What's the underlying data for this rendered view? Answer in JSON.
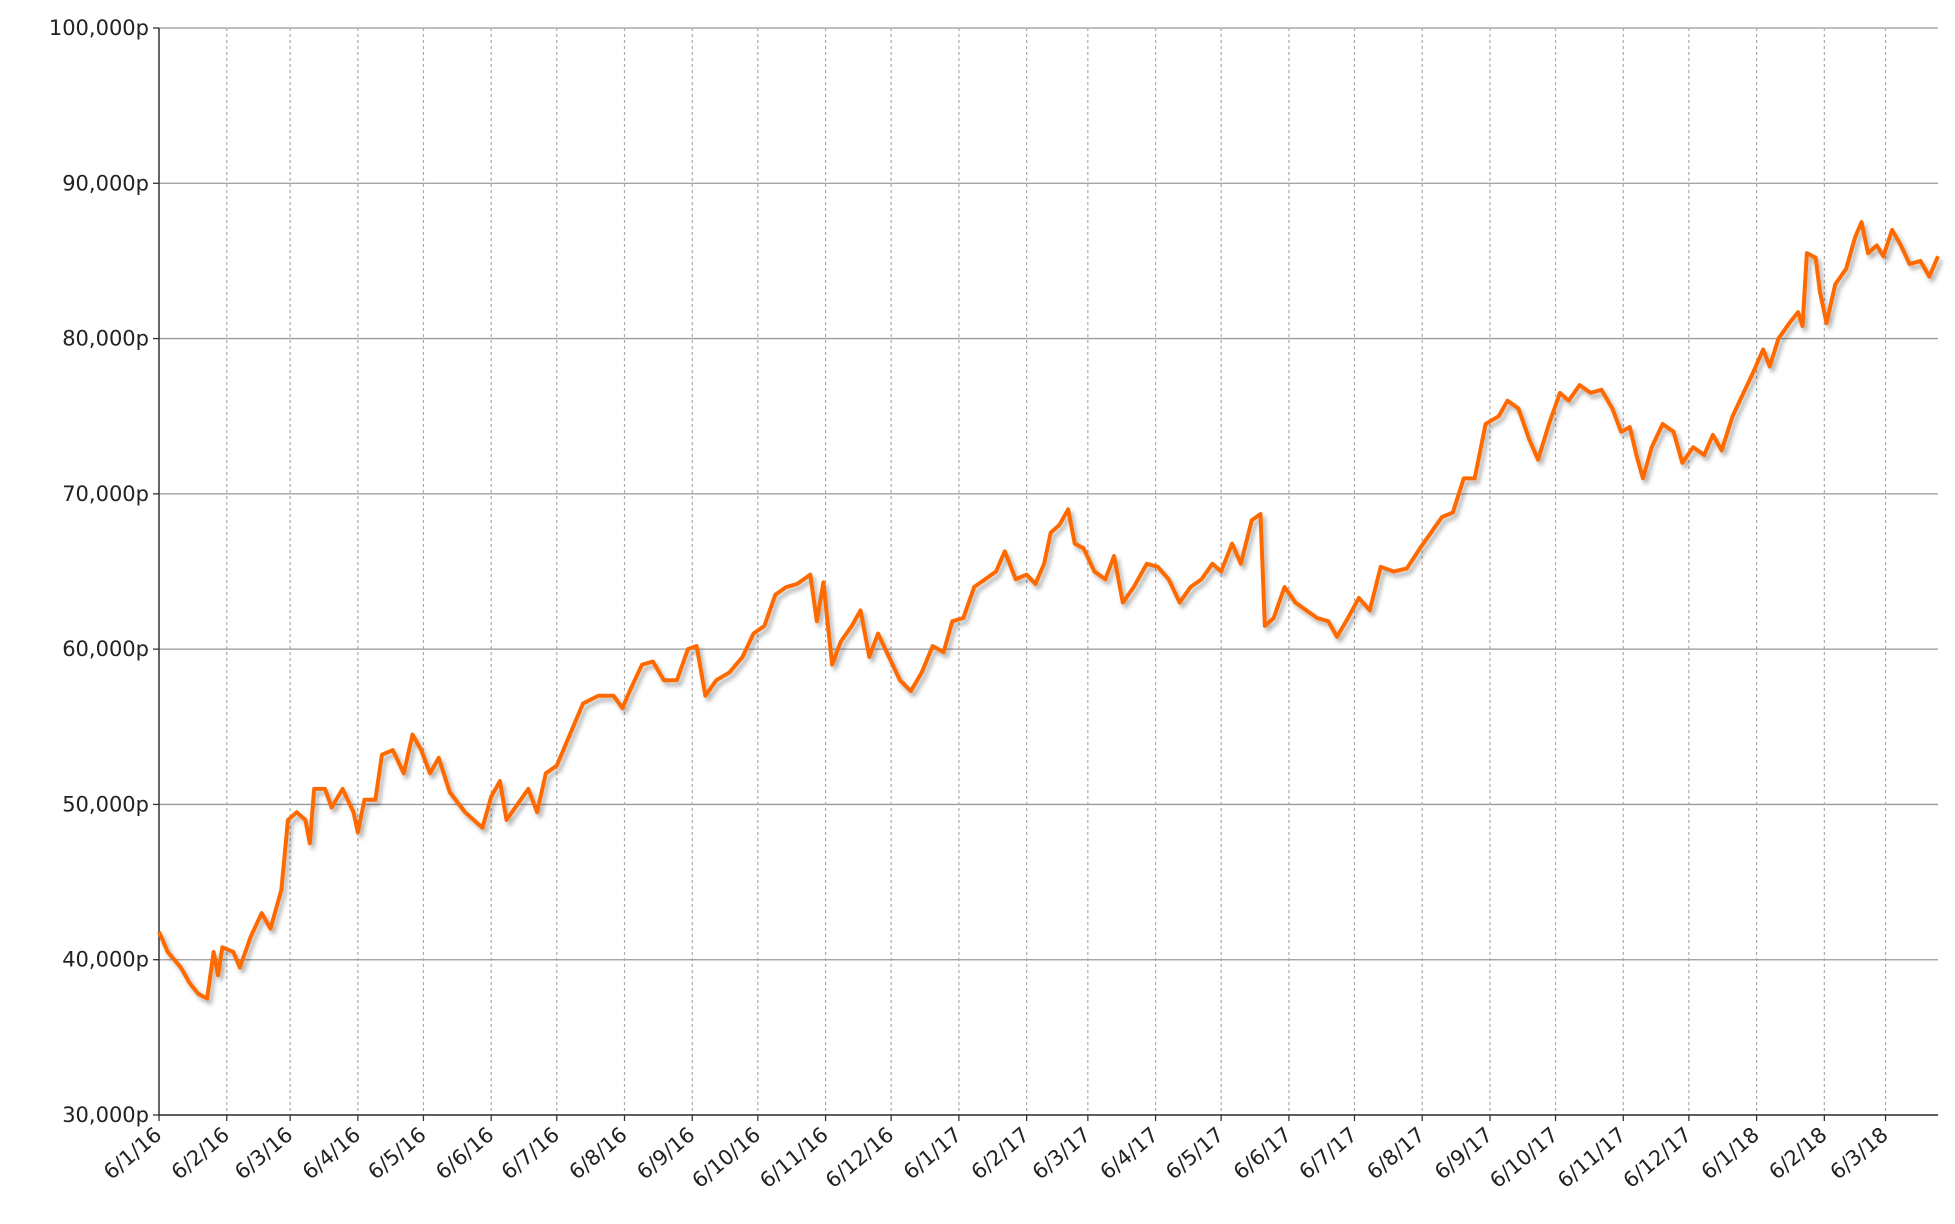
{
  "chart_data": {
    "type": "line",
    "x": [
      "6/1/16",
      "10/1/16",
      "16/1/16",
      "20/1/16",
      "24/1/16",
      "28/1/16",
      "31/1/16",
      "2/2/16",
      "4/2/16",
      "9/2/16",
      "12/2/16",
      "17/2/16",
      "22/2/16",
      "26/2/16",
      "2/3/16",
      "5/3/16",
      "9/3/16",
      "13/3/16",
      "15/3/16",
      "17/3/16",
      "22/3/16",
      "25/3/16",
      "30/3/16",
      "4/4/16",
      "6/4/16",
      "9/4/16",
      "14/4/16",
      "17/4/16",
      "22/4/16",
      "27/4/16",
      "1/5/16",
      "5/5/16",
      "9/5/16",
      "13/5/16",
      "18/5/16",
      "25/5/16",
      "2/6/16",
      "6/6/16",
      "10/6/16",
      "13/6/16",
      "18/6/16",
      "23/6/16",
      "27/6/16",
      "1/7/16",
      "6/7/16",
      "12/7/16",
      "18/7/16",
      "25/7/16",
      "1/8/16",
      "5/8/16",
      "9/8/16",
      "14/8/16",
      "19/8/16",
      "24/8/16",
      "30/8/16",
      "4/9/16",
      "8/9/16",
      "12/9/16",
      "17/9/16",
      "23/9/16",
      "29/9/16",
      "4/10/16",
      "9/10/16",
      "14/10/16",
      "19/10/16",
      "24/10/16",
      "30/10/16",
      "2/11/16",
      "5/11/16",
      "9/11/16",
      "13/11/16",
      "18/11/16",
      "22/11/16",
      "26/11/16",
      "30/11/16",
      "5/12/16",
      "10/12/16",
      "15/12/16",
      "20/12/16",
      "25/12/16",
      "30/12/16",
      "3/1/17",
      "8/1/17",
      "13/1/17",
      "18/1/17",
      "23/1/17",
      "27/1/17",
      "1/2/17",
      "6/2/17",
      "10/2/17",
      "14/2/17",
      "17/2/17",
      "21/2/17",
      "25/2/17",
      "28/2/17",
      "4/3/17",
      "9/3/17",
      "14/3/17",
      "18/3/17",
      "22/3/17",
      "27/3/17",
      "2/4/17",
      "7/4/17",
      "12/4/17",
      "17/4/17",
      "22/4/17",
      "27/4/17",
      "2/5/17",
      "6/5/17",
      "11/5/17",
      "15/5/17",
      "20/5/17",
      "24/5/17",
      "26/5/17",
      "30/5/17",
      "4/6/17",
      "9/6/17",
      "14/6/17",
      "19/6/17",
      "24/6/17",
      "28/6/17",
      "3/7/17",
      "8/7/17",
      "13/7/17",
      "18/7/17",
      "24/7/17",
      "30/7/17",
      "5/8/17",
      "10/8/17",
      "15/8/17",
      "20/8/17",
      "25/8/17",
      "30/8/17",
      "4/9/17",
      "10/9/17",
      "14/9/17",
      "19/9/17",
      "24/9/17",
      "28/9/17",
      "3/10/17",
      "8/10/17",
      "12/10/17",
      "17/10/17",
      "22/10/17",
      "27/10/17",
      "1/11/17",
      "5/11/17",
      "9/11/17",
      "12/11/17",
      "15/11/17",
      "19/11/17",
      "24/11/17",
      "29/11/17",
      "3/12/17",
      "8/12/17",
      "13/12/17",
      "17/12/17",
      "21/12/17",
      "26/12/17",
      "31/12/17",
      "5/1/18",
      "9/1/18",
      "12/1/18",
      "16/1/18",
      "21/1/18",
      "25/1/18",
      "27/1/18",
      "29/1/18",
      "2/2/18",
      "4/2/18",
      "7/2/18",
      "11/2/18",
      "16/2/18",
      "20/2/18",
      "23/2/18",
      "26/2/18",
      "2/3/18",
      "5/3/18",
      "9/3/18",
      "13/3/18",
      "17/3/18",
      "22/3/18",
      "26/3/18",
      "30/3/18"
    ],
    "series": [
      {
        "color": "#ff6a00",
        "values": [
          41800,
          40500,
          39500,
          38500,
          37800,
          37500,
          40500,
          39000,
          40800,
          40500,
          39500,
          41500,
          43000,
          42000,
          44500,
          49000,
          49500,
          49000,
          47500,
          51000,
          51000,
          49800,
          51000,
          49500,
          48200,
          50300,
          50300,
          53200,
          53500,
          52000,
          54500,
          53500,
          52000,
          53000,
          50800,
          49500,
          48500,
          50500,
          51500,
          49000,
          50000,
          51000,
          49500,
          52000,
          52500,
          54500,
          56500,
          57000,
          57000,
          56200,
          57500,
          59000,
          59200,
          58000,
          58000,
          60000,
          60200,
          57000,
          58000,
          58500,
          59500,
          61000,
          61500,
          63500,
          64000,
          64200,
          64800,
          61800,
          64300,
          59000,
          60500,
          61500,
          62500,
          59500,
          61000,
          59500,
          58000,
          57300,
          58500,
          60200,
          59800,
          61800,
          62000,
          64000,
          64500,
          65000,
          66300,
          64500,
          64800,
          64200,
          65500,
          67500,
          68000,
          69000,
          66800,
          66500,
          65000,
          64500,
          66000,
          63000,
          64000,
          65500,
          65300,
          64500,
          63000,
          64000,
          64500,
          65500,
          65000,
          66800,
          65500,
          68300,
          68700,
          61500,
          62000,
          64000,
          63000,
          62500,
          62000,
          61800,
          60800,
          62000,
          63300,
          62500,
          65300,
          65000,
          65200,
          66500,
          67500,
          68500,
          68800,
          71000,
          71000,
          74500,
          75000,
          76000,
          75500,
          73500,
          72200,
          74500,
          76500,
          76000,
          77000,
          76500,
          76700,
          75500,
          74000,
          74300,
          72500,
          71000,
          73000,
          74500,
          74000,
          72000,
          73000,
          72500,
          73800,
          72800,
          75000,
          76500,
          78000,
          79300,
          78200,
          80000,
          81000,
          81700,
          80800,
          85500,
          85200,
          83000,
          81000,
          83500,
          84500,
          86500,
          87500,
          85500,
          86000,
          85300,
          87000,
          86000,
          84800,
          85000,
          84000,
          85300
        ]
      }
    ],
    "xlim": [
      "6/1/16",
      "30/3/18"
    ],
    "xticks": [
      "6/1/16",
      "6/2/16",
      "6/3/16",
      "6/4/16",
      "6/5/16",
      "6/6/16",
      "6/7/16",
      "6/8/16",
      "6/9/16",
      "6/10/16",
      "6/11/16",
      "6/12/16",
      "6/1/17",
      "6/2/17",
      "6/3/17",
      "6/4/17",
      "6/5/17",
      "6/6/17",
      "6/7/17",
      "6/8/17",
      "6/9/17",
      "6/10/17",
      "6/11/17",
      "6/12/17",
      "6/1/18",
      "6/2/18",
      "6/3/18"
    ],
    "ylim": [
      30000,
      100000
    ],
    "yticks": [
      {
        "value": 30000,
        "label": "30,000p"
      },
      {
        "value": 40000,
        "label": "40,000p"
      },
      {
        "value": 50000,
        "label": "50,000p"
      },
      {
        "value": 60000,
        "label": "60,000p"
      },
      {
        "value": 70000,
        "label": "70,000p"
      },
      {
        "value": 80000,
        "label": "80,000p"
      },
      {
        "value": 90000,
        "label": "90,000p"
      },
      {
        "value": 100000,
        "label": "100,000p"
      }
    ],
    "grid": true
  }
}
